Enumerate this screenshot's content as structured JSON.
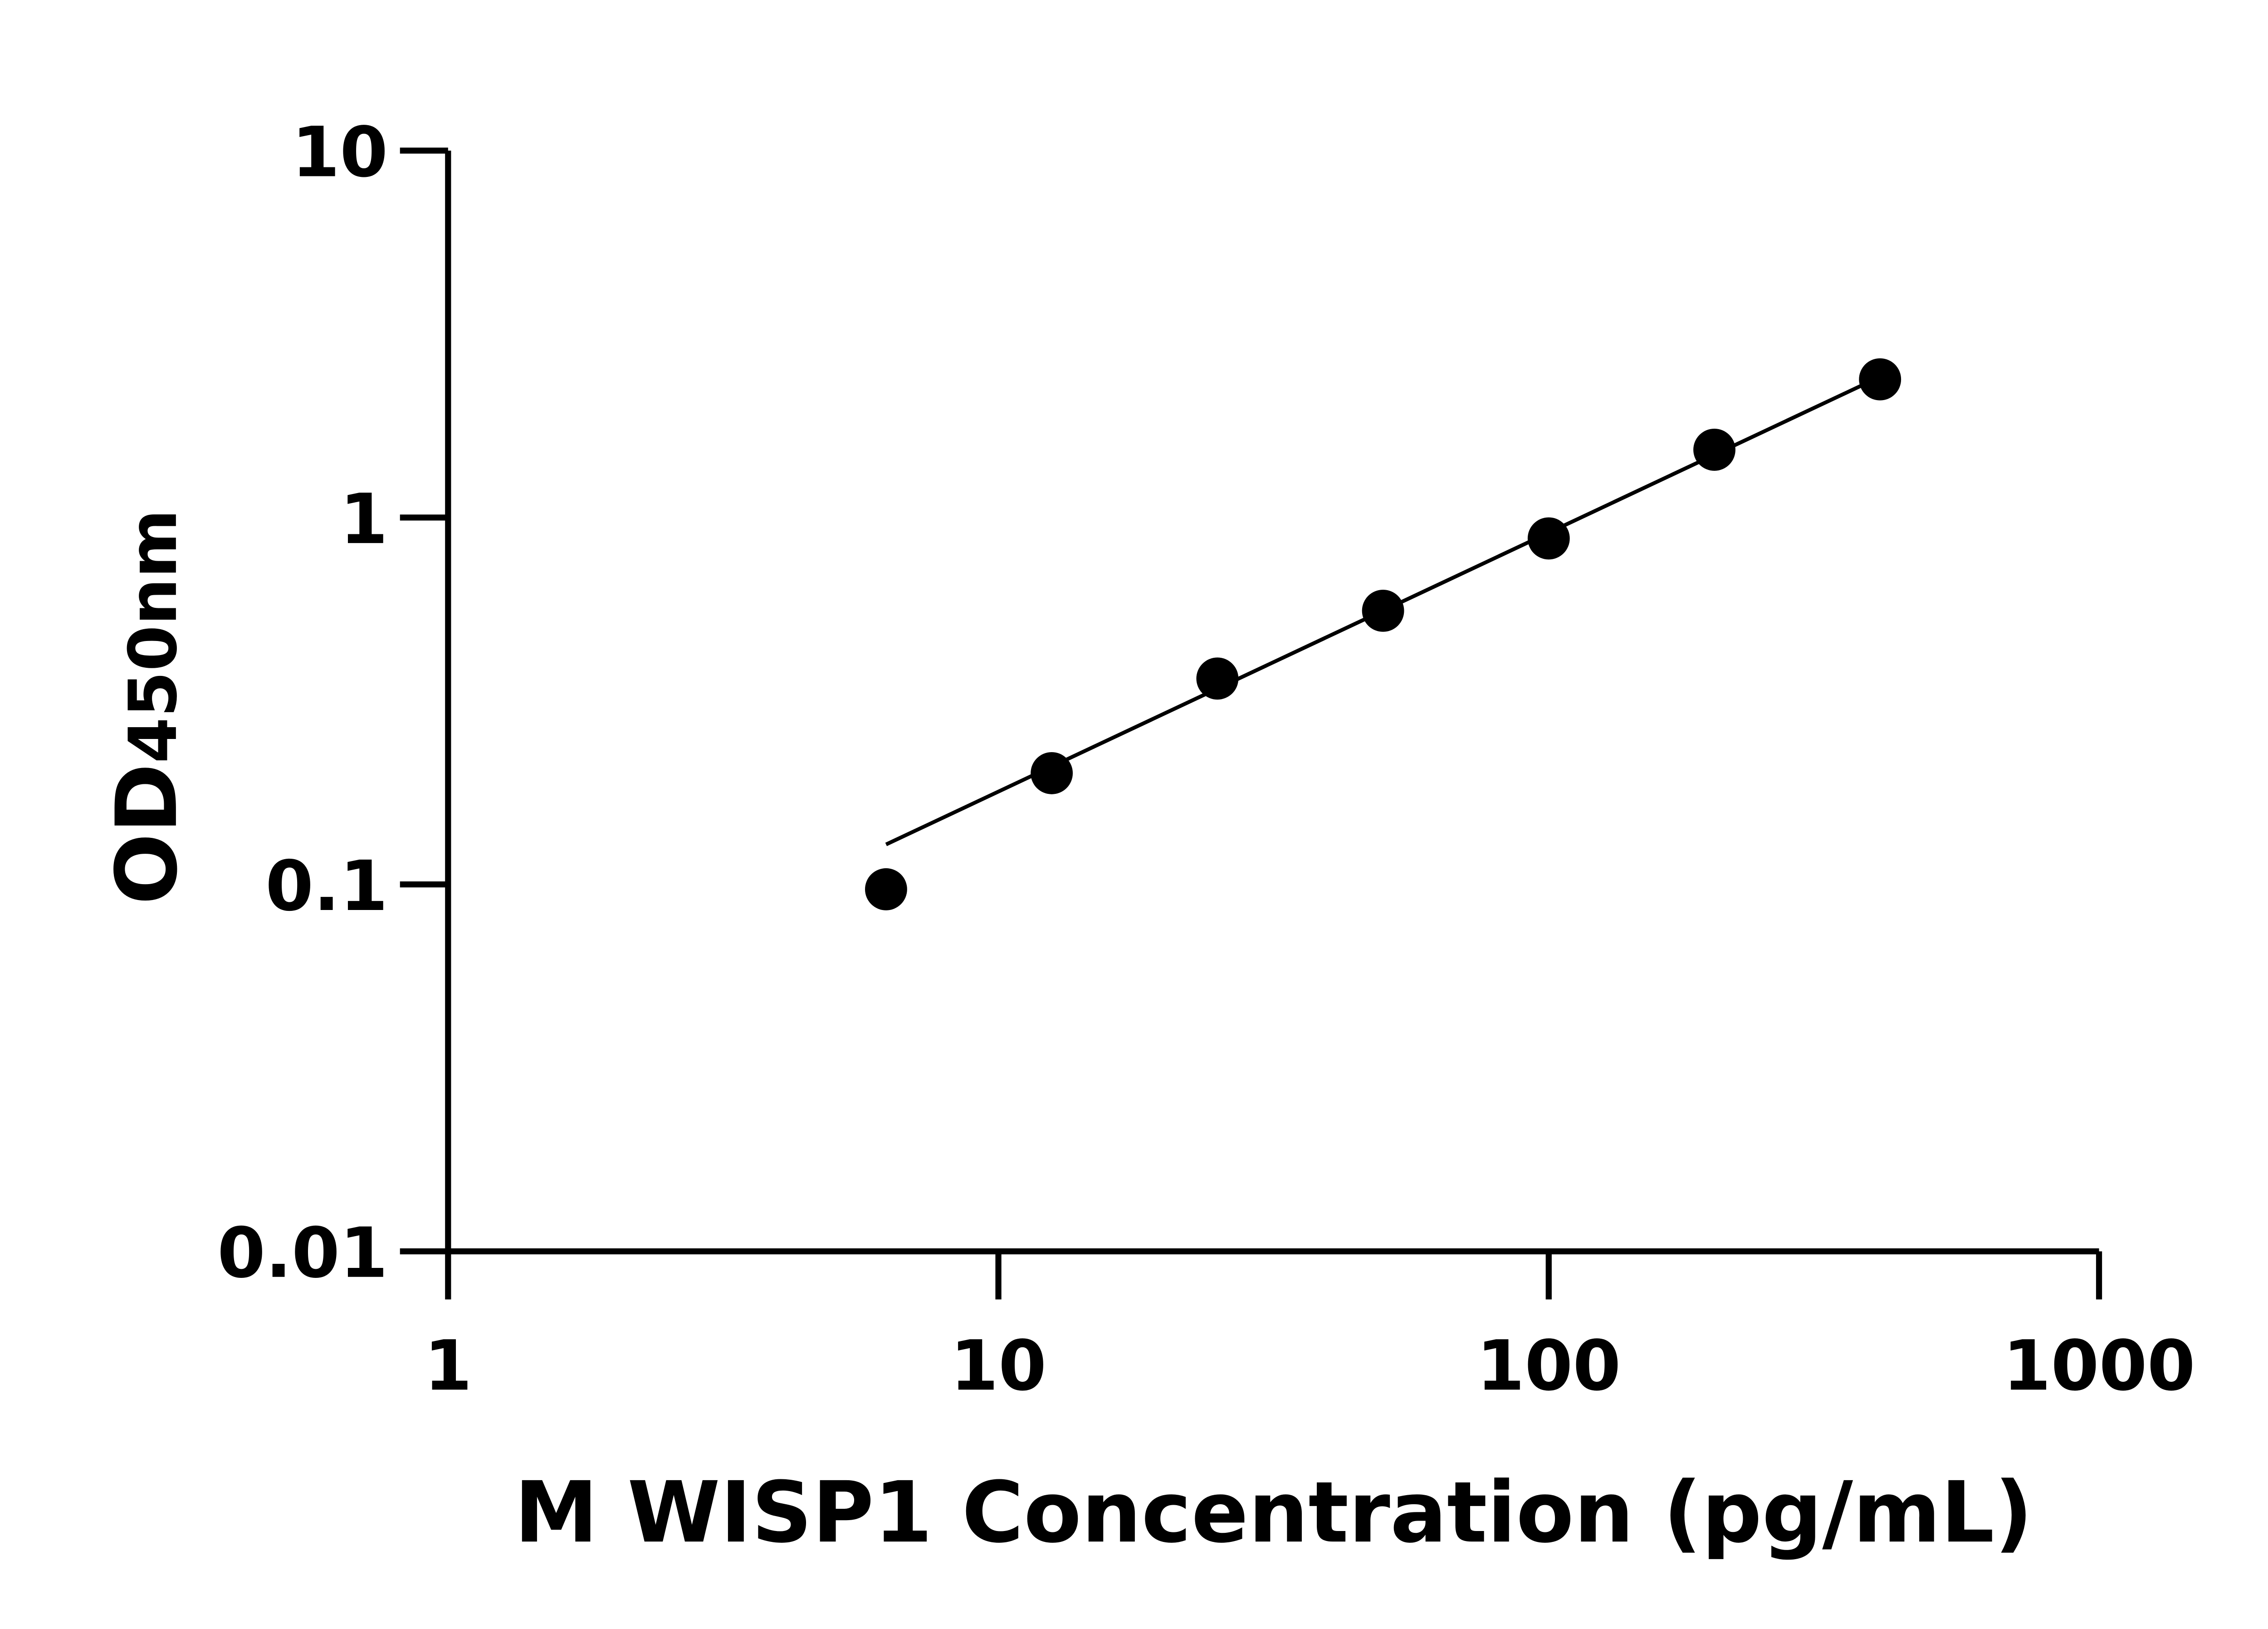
{
  "chart_data": {
    "type": "scatter",
    "title": "",
    "xlabel": "M WISP1 Concentration (pg/mL)",
    "ylabel_main": "OD",
    "ylabel_sub": "450nm",
    "x_scale": "log",
    "y_scale": "log",
    "xlim": [
      1,
      1000
    ],
    "ylim": [
      0.01,
      10
    ],
    "x_ticks": [
      "1",
      "10",
      "100",
      "1000"
    ],
    "y_ticks": [
      "0.01",
      "0.1",
      "1",
      "10"
    ],
    "grid": false,
    "legend": "none",
    "fit_line": true,
    "point_color": "#000000",
    "x": [
      6.25,
      12.5,
      25,
      50,
      100,
      200,
      400
    ],
    "y": [
      0.097,
      0.201,
      0.364,
      0.557,
      0.877,
      1.53,
      2.38
    ]
  }
}
